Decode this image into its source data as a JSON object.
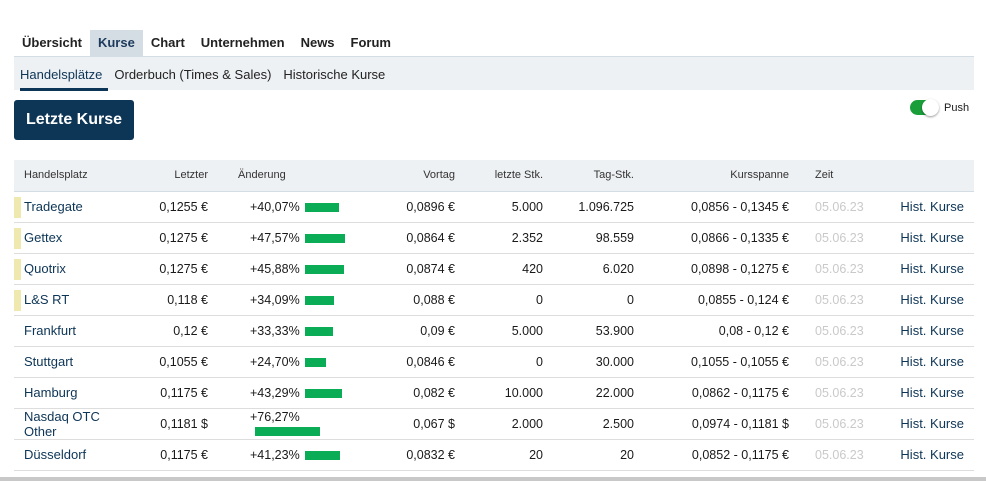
{
  "tabs": [
    "Übersicht",
    "Kurse",
    "Chart",
    "Unternehmen",
    "News",
    "Forum"
  ],
  "active_tab": "Kurse",
  "subtabs": [
    "Handelsplätze",
    "Orderbuch (Times & Sales)",
    "Historische Kurse"
  ],
  "active_subtab": "Handelsplätze",
  "button": "Letzte Kurse",
  "push": {
    "label": "Push",
    "on": true
  },
  "colors": {
    "accent": "#0d3556",
    "bar": "#0aac55",
    "marker": "#efe9b0",
    "toggle": "#1a9e3a"
  },
  "table": {
    "headers": [
      "Handelsplatz",
      "Letzter",
      "Änderung",
      "Vortag",
      "letzte Stk.",
      "Tag-Stk.",
      "Kursspanne",
      "Zeit",
      ""
    ],
    "rows": [
      {
        "name": "Tradegate",
        "marked": true,
        "last": "0,1255 €",
        "change": "+40,07%",
        "change_pct": 40.07,
        "prev": "0,0896 €",
        "last_qty": "5.000",
        "day_qty": "1.096.725",
        "range": "0,0856 - 0,1345 €",
        "time": "05.06.23",
        "link": "Hist. Kurse"
      },
      {
        "name": "Gettex",
        "marked": true,
        "last": "0,1275 €",
        "change": "+47,57%",
        "change_pct": 47.57,
        "prev": "0,0864 €",
        "last_qty": "2.352",
        "day_qty": "98.559",
        "range": "0,0866 - 0,1335 €",
        "time": "05.06.23",
        "link": "Hist. Kurse"
      },
      {
        "name": "Quotrix",
        "marked": true,
        "last": "0,1275 €",
        "change": "+45,88%",
        "change_pct": 45.88,
        "prev": "0,0874 €",
        "last_qty": "420",
        "day_qty": "6.020",
        "range": "0,0898 - 0,1275 €",
        "time": "05.06.23",
        "link": "Hist. Kurse"
      },
      {
        "name": "L&S RT",
        "marked": true,
        "last": "0,118 €",
        "change": "+34,09%",
        "change_pct": 34.09,
        "prev": "0,088 €",
        "last_qty": "0",
        "day_qty": "0",
        "range": "0,0855 - 0,124 €",
        "time": "05.06.23",
        "link": "Hist. Kurse"
      },
      {
        "name": "Frankfurt",
        "marked": false,
        "last": "0,12 €",
        "change": "+33,33%",
        "change_pct": 33.33,
        "prev": "0,09 €",
        "last_qty": "5.000",
        "day_qty": "53.900",
        "range": "0,08 - 0,12 €",
        "time": "05.06.23",
        "link": "Hist. Kurse"
      },
      {
        "name": "Stuttgart",
        "marked": false,
        "last": "0,1055 €",
        "change": "+24,70%",
        "change_pct": 24.7,
        "prev": "0,0846 €",
        "last_qty": "0",
        "day_qty": "30.000",
        "range": "0,1055 - 0,1055 €",
        "time": "05.06.23",
        "link": "Hist. Kurse"
      },
      {
        "name": "Hamburg",
        "marked": false,
        "last": "0,1175 €",
        "change": "+43,29%",
        "change_pct": 43.29,
        "prev": "0,082 €",
        "last_qty": "10.000",
        "day_qty": "22.000",
        "range": "0,0862 - 0,1175 €",
        "time": "05.06.23",
        "link": "Hist. Kurse"
      },
      {
        "name": "Nasdaq OTC Other",
        "marked": false,
        "last": "0,1181 $",
        "change": "+76,27%",
        "change_pct": 76.27,
        "prev": "0,067 $",
        "last_qty": "2.000",
        "day_qty": "2.500",
        "range": "0,0974 - 0,1181 $",
        "time": "05.06.23",
        "link": "Hist. Kurse"
      },
      {
        "name": "Düsseldorf",
        "marked": false,
        "last": "0,1175 €",
        "change": "+41,23%",
        "change_pct": 41.23,
        "prev": "0,0832 €",
        "last_qty": "20",
        "day_qty": "20",
        "range": "0,0852 - 0,1175 €",
        "time": "05.06.23",
        "link": "Hist. Kurse"
      }
    ]
  }
}
